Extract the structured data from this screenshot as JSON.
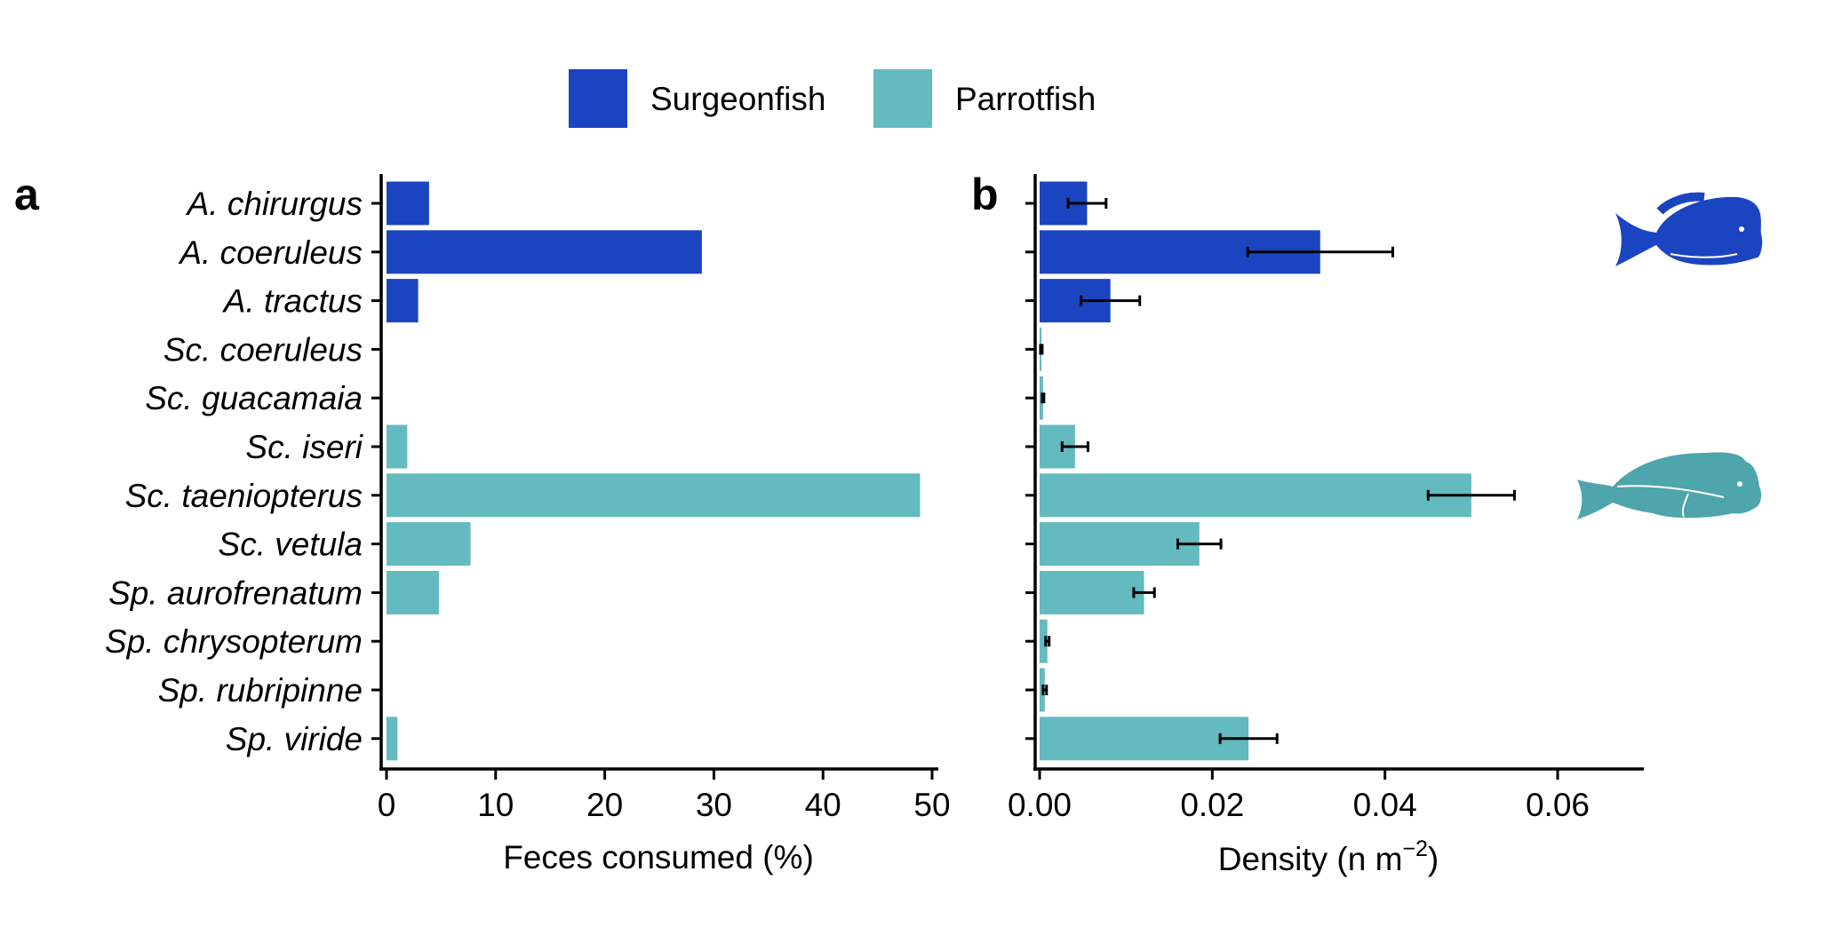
{
  "legend": {
    "items": [
      {
        "label": "Surgeonfish",
        "color": "#1b44c1"
      },
      {
        "label": "Parrotfish",
        "color": "#63babf"
      }
    ]
  },
  "chart_data": [
    {
      "type": "bar",
      "orientation": "horizontal",
      "panel_label": "a",
      "categories": [
        "A. chirurgus",
        "A. coeruleus",
        "A. tractus",
        "Sc. coeruleus",
        "Sc. guacamaia",
        "Sc. iseri",
        "Sc. taeniopterus",
        "Sc. vetula",
        "Sp. aurofrenatum",
        "Sp. chrysopterum",
        "Sp. rubripinne",
        "Sp. viride"
      ],
      "groups": [
        "Surgeonfish",
        "Surgeonfish",
        "Surgeonfish",
        "Parrotfish",
        "Parrotfish",
        "Parrotfish",
        "Parrotfish",
        "Parrotfish",
        "Parrotfish",
        "Parrotfish",
        "Parrotfish",
        "Parrotfish"
      ],
      "values": [
        3.9,
        28.9,
        2.9,
        0,
        0,
        1.9,
        48.9,
        7.7,
        4.8,
        0,
        0,
        1.0
      ],
      "xlabel": "Feces consumed (%)",
      "xlim": [
        0,
        50
      ],
      "xticks": [
        "0",
        "10",
        "20",
        "30",
        "40",
        "50"
      ],
      "grid": false
    },
    {
      "type": "bar",
      "orientation": "horizontal",
      "panel_label": "b",
      "categories": [
        "A. chirurgus",
        "A. coeruleus",
        "A. tractus",
        "Sc. coeruleus",
        "Sc. guacamaia",
        "Sc. iseri",
        "Sc. taeniopterus",
        "Sc. vetula",
        "Sp. aurofrenatum",
        "Sp. chrysopterum",
        "Sp. rubripinne",
        "Sp. viride"
      ],
      "groups": [
        "Surgeonfish",
        "Surgeonfish",
        "Surgeonfish",
        "Parrotfish",
        "Parrotfish",
        "Parrotfish",
        "Parrotfish",
        "Parrotfish",
        "Parrotfish",
        "Parrotfish",
        "Parrotfish",
        "Parrotfish"
      ],
      "values": [
        0.0055,
        0.0325,
        0.0082,
        0.0002,
        0.0004,
        0.0041,
        0.05,
        0.0185,
        0.0121,
        0.0009,
        0.0006,
        0.0242
      ],
      "errors": [
        0.0022,
        0.0084,
        0.0034,
        0.0001,
        0.0001,
        0.0015,
        0.005,
        0.0025,
        0.0012,
        0.0002,
        0.0002,
        0.0033
      ],
      "xlabel": {
        "main": "Density (n m",
        "sup": "−2",
        "close": ")"
      },
      "xlim": [
        0,
        0.07
      ],
      "xticks": [
        "0.00",
        "0.02",
        "0.04",
        "0.06"
      ],
      "grid": false,
      "icons": [
        "surgeonfish-silhouette",
        "parrotfish-silhouette"
      ]
    }
  ]
}
